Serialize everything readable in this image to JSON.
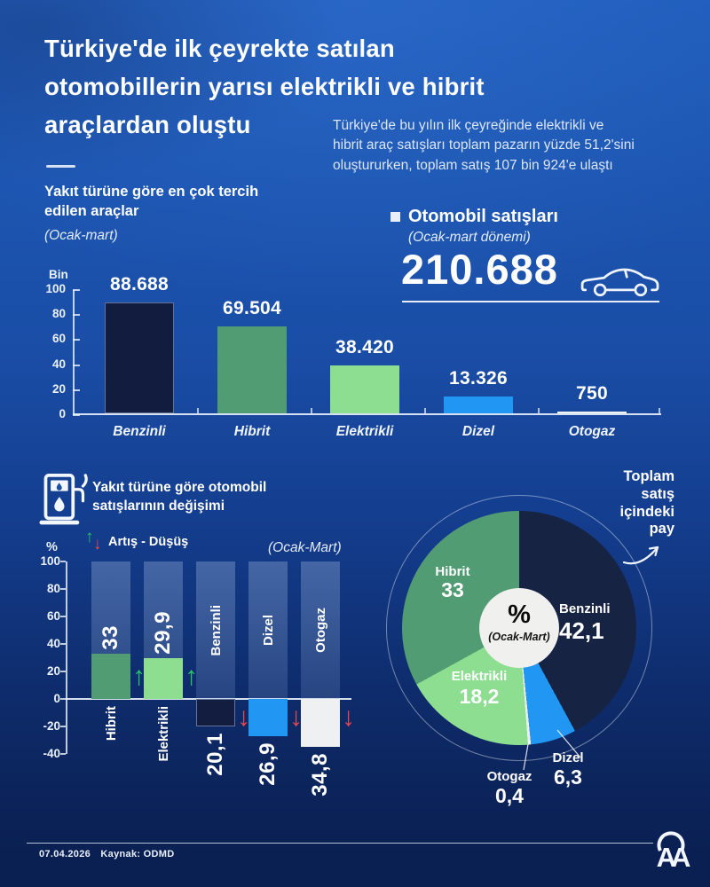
{
  "icons": {
    "up_arrow": "↑",
    "down_arrow": "↓",
    "fuel_pump": "fuel-pump-icon",
    "car": "car-outline-icon",
    "agency": "AA-monogram-icon",
    "curved_arrow": "curved-arrow-icon"
  },
  "colors": {
    "benzinli": "#111c3e",
    "hibrit": "#529c73",
    "elektrikli": "#8ede92",
    "dizel": "#2196f3",
    "otogaz": "#f0f2f4",
    "axis": "#e9f0fb",
    "arrow_up": "#25c468",
    "arrow_down": "#e5484d"
  },
  "page": {
    "title": "Türkiye'de ilk çeyrekte satılan\notomobillerin yarısı elektrikli ve hibrit\naraçlardan oluştu",
    "intro": "Türkiye'de bu yılın ilk çeyreğinde elektrikli ve\nhibrit araç satışları toplam pazarın yüzde 51,2'sini\noluştururken, toplam satış 107 bin 924'e ulaştı"
  },
  "chart1": {
    "heading": "Yakıt türüne göre en çok tercih\nedilen araçlar",
    "period": "(Ocak-mart)",
    "unit": "Bin"
  },
  "sales": {
    "title": "Otomobil satışları",
    "period": "(Ocak-mart dönemi)",
    "total": "210.688"
  },
  "chart2": {
    "heading": "Yakıt türüne göre otomobil\nsatışlarının değişimi",
    "legend": "Artış - Düşüş",
    "period": "(Ocak-Mart)",
    "unit": "%"
  },
  "pie": {
    "annotation": "Toplam\nsatış\niçindeki\npay",
    "center": "%",
    "center_period": "(Ocak-Mart)"
  },
  "footer": {
    "date": "07.04.2026",
    "source": "Kaynak: ODMD"
  },
  "chart_data": [
    {
      "id": "fuel-type-sales",
      "type": "bar",
      "title": "Yakıt türüne göre en çok tercih edilen araçlar (Ocak-mart)",
      "ylabel": "Bin",
      "ylim": [
        0,
        100
      ],
      "yticks": [
        100,
        80,
        60,
        40,
        20,
        0
      ],
      "grid": false,
      "categories": [
        "Benzinli",
        "Hibrit",
        "Elektrikli",
        "Dizel",
        "Otogaz"
      ],
      "values": [
        88688,
        69504,
        38420,
        13326,
        750
      ],
      "value_labels": [
        "88.688",
        "69.504",
        "38.420",
        "13.326",
        "750"
      ],
      "colors": [
        "#111c3e",
        "#529c73",
        "#8ede92",
        "#2196f3",
        "#f0f2f4"
      ]
    },
    {
      "id": "fuel-type-change",
      "type": "bar",
      "title": "Yakıt türüne göre otomobil satışlarının değişimi (Ocak-Mart)",
      "ylabel": "%",
      "ylim": [
        -40,
        100
      ],
      "yticks": [
        100,
        80,
        60,
        40,
        20,
        0,
        -20,
        -40
      ],
      "grid": false,
      "categories": [
        "Hibrit",
        "Elektrikli",
        "Benzinli",
        "Dizel",
        "Otogaz"
      ],
      "values": [
        33,
        29.9,
        -20.1,
        -26.9,
        -34.8
      ],
      "value_labels": [
        "33",
        "29,9",
        "20,1",
        "26,9",
        "34,8"
      ],
      "directions": [
        "up",
        "up",
        "down",
        "down",
        "down"
      ],
      "colors": [
        "#529c73",
        "#8ede92",
        "#131d40",
        "#2196f3",
        "#eef0f2"
      ]
    },
    {
      "id": "share-of-total-sales",
      "type": "pie",
      "title": "Toplam satış içindeki pay",
      "center_label": "%",
      "center_period": "(Ocak-Mart)",
      "slices": [
        {
          "name": "Benzinli",
          "value": 42.1,
          "label": "42,1",
          "color": "#162343"
        },
        {
          "name": "Dizel",
          "value": 6.3,
          "label": "6,3",
          "color": "#2196f3"
        },
        {
          "name": "Otogaz",
          "value": 0.4,
          "label": "0,4",
          "color": "#eceeee"
        },
        {
          "name": "Elektrikli",
          "value": 18.2,
          "label": "18,2",
          "color": "#8ede92"
        },
        {
          "name": "Hibrit",
          "value": 33,
          "label": "33",
          "color": "#529c73"
        }
      ]
    }
  ]
}
